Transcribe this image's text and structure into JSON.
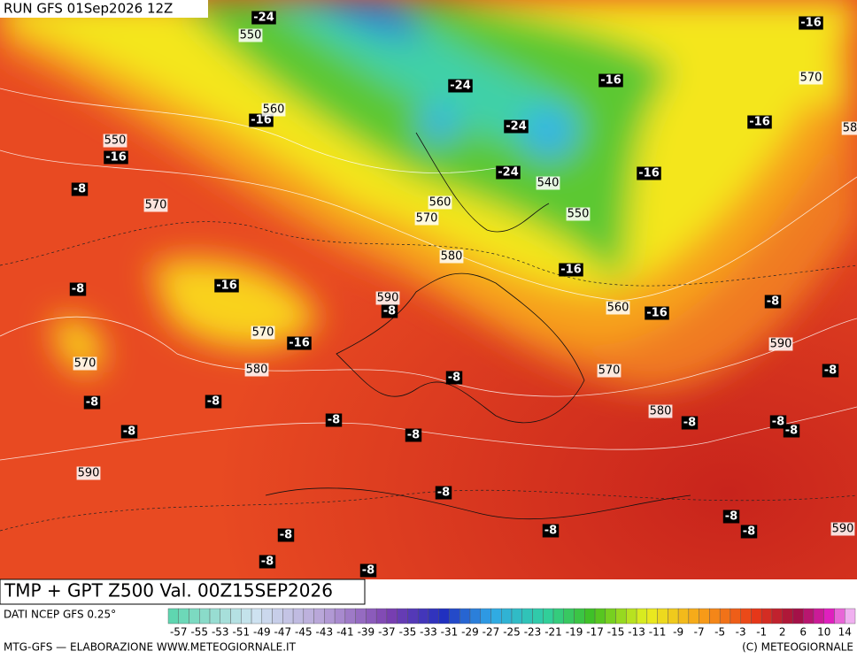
{
  "header": {
    "run": "RUN GFS 01Sep2026 12Z"
  },
  "map": {
    "temperature_labels": [
      "-24",
      "-16",
      "-24",
      "-16",
      "-16",
      "-24",
      "-16",
      "-16",
      "-24",
      "-16",
      "-8",
      "-16",
      "-8",
      "-16",
      "-8",
      "-16",
      "-16",
      "-8",
      "-8",
      "-8",
      "-8",
      "-8",
      "-8",
      "-8",
      "-8",
      "-8",
      "-8",
      "-8",
      "-8",
      "-8",
      "-8",
      "-8",
      "-8",
      "-8",
      "-8"
    ],
    "height_labels": [
      "550",
      "570",
      "560",
      "550",
      "570",
      "560",
      "570",
      "580",
      "590",
      "570",
      "580",
      "570",
      "560",
      "540",
      "550",
      "590",
      "570",
      "580",
      "590",
      "590",
      "58"
    ]
  },
  "footer": {
    "title": "TMP + GPT Z500 Val. 00Z15SEP2026",
    "source": "DATI NCEP GFS 0.25°",
    "credit_left": "MTG-GFS — ELABORAZIONE WWW.METEOGIORNALE.IT",
    "credit_right": "(C) METEOGIORNALE"
  },
  "legend": {
    "labels": [
      "-57",
      "-55",
      "-53",
      "-51",
      "-49",
      "-47",
      "-45",
      "-43",
      "-41",
      "-39",
      "-37",
      "-35",
      "-33",
      "-31",
      "-29",
      "-27",
      "-25",
      "-23",
      "-21",
      "-19",
      "-17",
      "-15",
      "-13",
      "-11",
      "-9",
      "-7",
      "-5",
      "-3",
      "-1",
      "2",
      "6",
      "10",
      "14"
    ]
  }
}
